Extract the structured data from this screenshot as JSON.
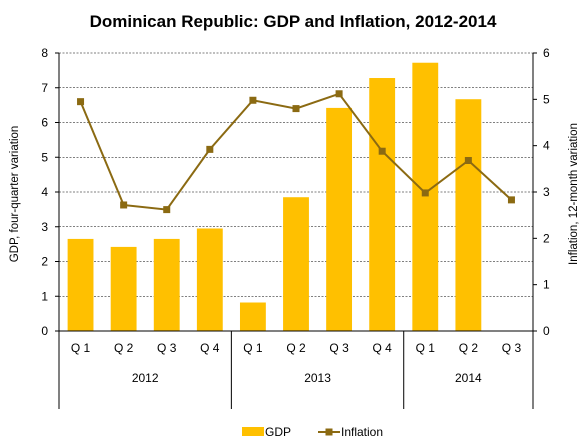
{
  "chart_data": {
    "type": "bar+line",
    "title": "Dominican Republic: GDP and Inflation, 2012-2014",
    "categories": [
      "Q 1",
      "Q 2",
      "Q 3",
      "Q 4",
      "Q 1",
      "Q 2",
      "Q 3",
      "Q 4",
      "Q 1",
      "Q 2",
      "Q 3"
    ],
    "year_groups": [
      {
        "label": "2012",
        "count": 4
      },
      {
        "label": "2013",
        "count": 4
      },
      {
        "label": "2014",
        "count": 3
      }
    ],
    "series": [
      {
        "name": "GDP",
        "type": "bar",
        "axis": "left",
        "color": "#FFC000",
        "values": [
          2.65,
          2.42,
          2.65,
          2.95,
          0.82,
          3.85,
          6.42,
          7.28,
          7.72,
          6.67,
          null
        ]
      },
      {
        "name": "Inflation",
        "type": "line",
        "axis": "right",
        "color": "#8B6A12",
        "values": [
          4.95,
          2.72,
          2.62,
          3.92,
          4.98,
          4.8,
          5.12,
          3.88,
          2.98,
          3.68,
          2.83
        ]
      }
    ],
    "ylabel": "GDP, four-quarter variation",
    "ylim": [
      0,
      8
    ],
    "yticks": [
      "0",
      "1",
      "2",
      "3",
      "4",
      "5",
      "6",
      "7",
      "8"
    ],
    "y2label": "Inflation, 12-month variation",
    "y2lim": [
      0,
      6
    ],
    "y2ticks": [
      "0",
      "1",
      "2",
      "3",
      "4",
      "5",
      "6"
    ],
    "grid": true,
    "legend_position": "bottom"
  }
}
